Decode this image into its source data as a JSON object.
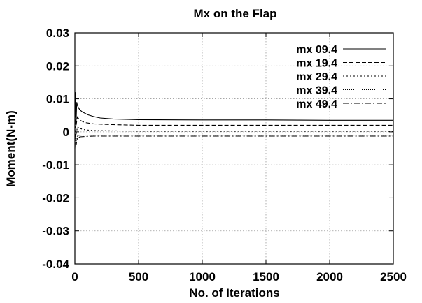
{
  "chart_data": {
    "type": "line",
    "title": "Mx on the Flap",
    "xlabel": "No. of Iterations",
    "ylabel": "Moment(N-m)",
    "xlim": [
      0,
      2500
    ],
    "ylim": [
      -0.04,
      0.03
    ],
    "xticks": [
      0,
      500,
      1000,
      1500,
      2000,
      2500
    ],
    "xtick_labels": [
      "0",
      "500",
      "1000",
      "1500",
      "2000",
      "2500"
    ],
    "yticks": [
      -0.04,
      -0.03,
      -0.02,
      -0.01,
      0,
      0.01,
      0.02,
      0.03
    ],
    "ytick_labels": [
      "-0.04",
      "-0.03",
      "-0.02",
      "-0.01",
      "0",
      "0.01",
      "0.02",
      "0.03"
    ],
    "grid": true,
    "legend_position": "top-right",
    "series": [
      {
        "name": "mx 09.4",
        "dash": "solid",
        "x": [
          0,
          5,
          10,
          15,
          20,
          30,
          40,
          60,
          80,
          100,
          150,
          200,
          300,
          500,
          1000,
          1500,
          2000,
          2500
        ],
        "y": [
          0.001,
          0.012,
          0.003,
          0.009,
          0.008,
          0.0072,
          0.0066,
          0.006,
          0.0056,
          0.0052,
          0.0046,
          0.0042,
          0.0039,
          0.0037,
          0.0036,
          0.0036,
          0.0035,
          0.0035
        ]
      },
      {
        "name": "mx 19.4",
        "dash": "dashed",
        "x": [
          0,
          5,
          10,
          20,
          40,
          80,
          150,
          300,
          500,
          1000,
          1500,
          2000,
          2500
        ],
        "y": [
          0.0005,
          0.006,
          0.002,
          0.0045,
          0.0035,
          0.0028,
          0.0024,
          0.0022,
          0.002,
          0.002,
          0.002,
          0.002,
          0.002
        ]
      },
      {
        "name": "mx 29.4",
        "dash": "dotted",
        "x": [
          0,
          5,
          10,
          20,
          40,
          80,
          150,
          300,
          500,
          1000,
          1500,
          2000,
          2500
        ],
        "y": [
          -0.001,
          0.003,
          -0.001,
          0.0015,
          0.001,
          0.0006,
          0.0004,
          0.0003,
          0.0002,
          0.0002,
          0.0002,
          0.0002,
          0.0002
        ]
      },
      {
        "name": "mx 39.4",
        "dash": "fine-dotted",
        "x": [
          0,
          5,
          10,
          20,
          40,
          80,
          150,
          300,
          500,
          1000,
          1500,
          2000,
          2500
        ],
        "y": [
          -0.004,
          -0.0005,
          -0.003,
          -0.0012,
          -0.001,
          -0.001,
          -0.001,
          -0.001,
          -0.001,
          -0.001,
          -0.001,
          -0.001,
          -0.001
        ]
      },
      {
        "name": "mx 49.4",
        "dash": "dash-dot",
        "x": [
          0,
          5,
          10,
          20,
          40,
          80,
          150,
          300,
          500,
          1000,
          1500,
          2000,
          2500
        ],
        "y": [
          -0.005,
          -0.0008,
          -0.004,
          -0.0018,
          -0.0015,
          -0.0014,
          -0.0013,
          -0.0013,
          -0.0013,
          -0.0013,
          -0.0013,
          -0.0013,
          -0.0013
        ]
      }
    ]
  }
}
